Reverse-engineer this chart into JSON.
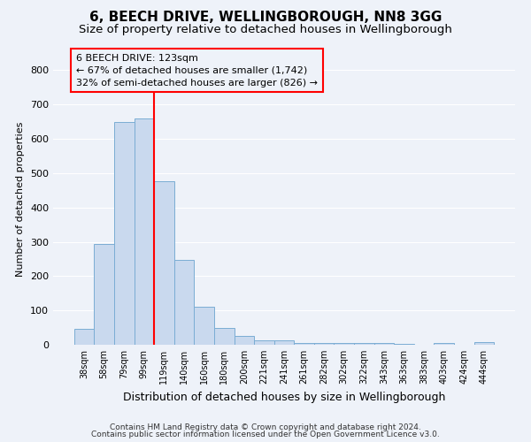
{
  "title": "6, BEECH DRIVE, WELLINGBOROUGH, NN8 3GG",
  "subtitle": "Size of property relative to detached houses in Wellingborough",
  "xlabel": "Distribution of detached houses by size in Wellingborough",
  "ylabel": "Number of detached properties",
  "bar_labels": [
    "38sqm",
    "58sqm",
    "79sqm",
    "99sqm",
    "119sqm",
    "140sqm",
    "160sqm",
    "180sqm",
    "200sqm",
    "221sqm",
    "241sqm",
    "261sqm",
    "282sqm",
    "302sqm",
    "322sqm",
    "343sqm",
    "363sqm",
    "383sqm",
    "403sqm",
    "424sqm",
    "444sqm"
  ],
  "bar_values": [
    46,
    293,
    648,
    660,
    476,
    248,
    112,
    50,
    26,
    14,
    13,
    4,
    4,
    5,
    5,
    5,
    2,
    1,
    5,
    1,
    9
  ],
  "bar_color": "#c9d9ee",
  "bar_edge_color": "#7aadd4",
  "red_line_x": 3.5,
  "annotation_title": "6 BEECH DRIVE: 123sqm",
  "annotation_line1": "← 67% of detached houses are smaller (1,742)",
  "annotation_line2": "32% of semi-detached houses are larger (826) →",
  "ylim": [
    0,
    850
  ],
  "yticks": [
    0,
    100,
    200,
    300,
    400,
    500,
    600,
    700,
    800
  ],
  "footer1": "Contains HM Land Registry data © Crown copyright and database right 2024.",
  "footer2": "Contains public sector information licensed under the Open Government Licence v3.0.",
  "background_color": "#eef2f9",
  "grid_color": "#ffffff",
  "title_fontsize": 11,
  "subtitle_fontsize": 9.5,
  "xlabel_fontsize": 9,
  "ylabel_fontsize": 8,
  "tick_fontsize": 7,
  "footer_fontsize": 6.5,
  "annot_fontsize": 8
}
